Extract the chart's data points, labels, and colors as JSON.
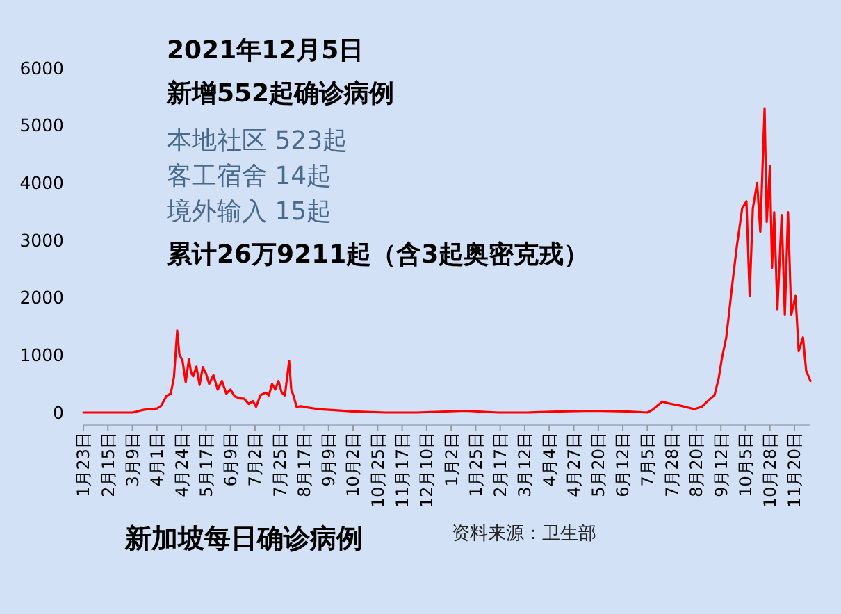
{
  "chart_data": {
    "type": "line",
    "title": "新加坡每日确诊病例",
    "annotations": [
      "2021年12月5日",
      "新增552起确诊病例",
      "本地社区 523起",
      "客工宿舍 14起",
      "境外输入 15起",
      "累计26万9211起（含3起奥密克戎）",
      "资料来源：卫生部"
    ],
    "x": [
      "2020-01-23",
      "2020-02-15",
      "2020-03-09",
      "2020-03-20",
      "2020-04-01",
      "2020-04-05",
      "2020-04-10",
      "2020-04-14",
      "2020-04-17",
      "2020-04-20",
      "2020-04-22",
      "2020-04-25",
      "2020-04-28",
      "2020-05-01",
      "2020-05-03",
      "2020-05-05",
      "2020-05-08",
      "2020-05-11",
      "2020-05-14",
      "2020-05-17",
      "2020-05-20",
      "2020-05-24",
      "2020-05-28",
      "2020-06-01",
      "2020-06-05",
      "2020-06-09",
      "2020-06-13",
      "2020-06-17",
      "2020-06-22",
      "2020-06-26",
      "2020-06-30",
      "2020-07-03",
      "2020-07-07",
      "2020-07-12",
      "2020-07-15",
      "2020-07-18",
      "2020-07-21",
      "2020-07-24",
      "2020-07-27",
      "2020-07-30",
      "2020-08-03",
      "2020-08-05",
      "2020-08-07",
      "2020-08-10",
      "2020-08-14",
      "2020-08-20",
      "2020-08-30",
      "2020-09-15",
      "2020-10-01",
      "2020-11-01",
      "2020-12-01",
      "2021-01-15",
      "2021-02-15",
      "2021-03-15",
      "2021-04-15",
      "2021-05-15",
      "2021-06-15",
      "2021-07-05",
      "2021-07-10",
      "2021-07-15",
      "2021-07-19",
      "2021-07-25",
      "2021-08-05",
      "2021-08-18",
      "2021-08-25",
      "2021-09-02",
      "2021-09-06",
      "2021-09-10",
      "2021-09-13",
      "2021-09-17",
      "2021-09-19",
      "2021-09-23",
      "2021-09-27",
      "2021-10-02",
      "2021-10-06",
      "2021-10-09",
      "2021-10-12",
      "2021-10-16",
      "2021-10-19",
      "2021-10-23",
      "2021-10-25",
      "2021-10-28",
      "2021-10-30",
      "2021-11-01",
      "2021-11-04",
      "2021-11-08",
      "2021-11-11",
      "2021-11-14",
      "2021-11-17",
      "2021-11-21",
      "2021-11-24",
      "2021-11-28",
      "2021-12-01",
      "2021-12-05"
    ],
    "series": [
      {
        "color": "#ff0000",
        "values": [
          0,
          0,
          0,
          50,
          70,
          120,
          290,
          330,
          620,
          1430,
          1020,
          900,
          530,
          930,
          700,
          630,
          800,
          480,
          790,
          680,
          500,
          650,
          400,
          550,
          330,
          400,
          280,
          250,
          240,
          150,
          200,
          100,
          300,
          350,
          300,
          500,
          400,
          550,
          350,
          300,
          900,
          400,
          300,
          100,
          110,
          90,
          60,
          40,
          20,
          0,
          0,
          30,
          0,
          0,
          20,
          30,
          20,
          0,
          50,
          130,
          190,
          160,
          120,
          60,
          100,
          240,
          300,
          600,
          950,
          1300,
          1620,
          2280,
          2900,
          3560,
          3680,
          2030,
          3560,
          4000,
          3150,
          5300,
          3320,
          4290,
          2520,
          3490,
          1790,
          3440,
          1700,
          3490,
          1700,
          2030,
          1070,
          1310,
          730,
          550
        ]
      }
    ],
    "xlim": [
      "2020-01-23",
      "2021-12-05"
    ],
    "xticks": [
      {
        "value": "2020-01-23",
        "label": "1月23日"
      },
      {
        "value": "2020-02-15",
        "label": "2月15日"
      },
      {
        "value": "2020-03-09",
        "label": "3月9日"
      },
      {
        "value": "2020-04-01",
        "label": "4月1日"
      },
      {
        "value": "2020-04-24",
        "label": "4月24日"
      },
      {
        "value": "2020-05-17",
        "label": "5月17日"
      },
      {
        "value": "2020-06-09",
        "label": "6月9日"
      },
      {
        "value": "2020-07-02",
        "label": "7月2日"
      },
      {
        "value": "2020-07-25",
        "label": "7月25日"
      },
      {
        "value": "2020-08-17",
        "label": "8月17日"
      },
      {
        "value": "2020-09-09",
        "label": "9月9日"
      },
      {
        "value": "2020-10-02",
        "label": "10月2日"
      },
      {
        "value": "2020-10-25",
        "label": "10月25日"
      },
      {
        "value": "2020-11-17",
        "label": "11月17日"
      },
      {
        "value": "2020-12-10",
        "label": "12月10日"
      },
      {
        "value": "2021-01-02",
        "label": "1月2日"
      },
      {
        "value": "2021-01-25",
        "label": "1月25日"
      },
      {
        "value": "2021-02-17",
        "label": "2月17日"
      },
      {
        "value": "2021-03-12",
        "label": "3月12日"
      },
      {
        "value": "2021-04-04",
        "label": "4月4日"
      },
      {
        "value": "2021-04-27",
        "label": "4月27日"
      },
      {
        "value": "2021-05-20",
        "label": "5月20日"
      },
      {
        "value": "2021-06-12",
        "label": "6月12日"
      },
      {
        "value": "2021-07-05",
        "label": "7月5日"
      },
      {
        "value": "2021-07-28",
        "label": "7月28日"
      },
      {
        "value": "2021-08-20",
        "label": "8月20日"
      },
      {
        "value": "2021-09-12",
        "label": "9月12日"
      },
      {
        "value": "2021-10-05",
        "label": "10月5日"
      },
      {
        "value": "2021-10-28",
        "label": "10月28日"
      },
      {
        "value": "2021-11-20",
        "label": "11月20日"
      }
    ],
    "ylim": [
      0,
      6000
    ],
    "yticks": [
      0,
      1000,
      2000,
      3000,
      4000,
      5000,
      6000
    ],
    "marker": "none",
    "line_style": "solid"
  }
}
